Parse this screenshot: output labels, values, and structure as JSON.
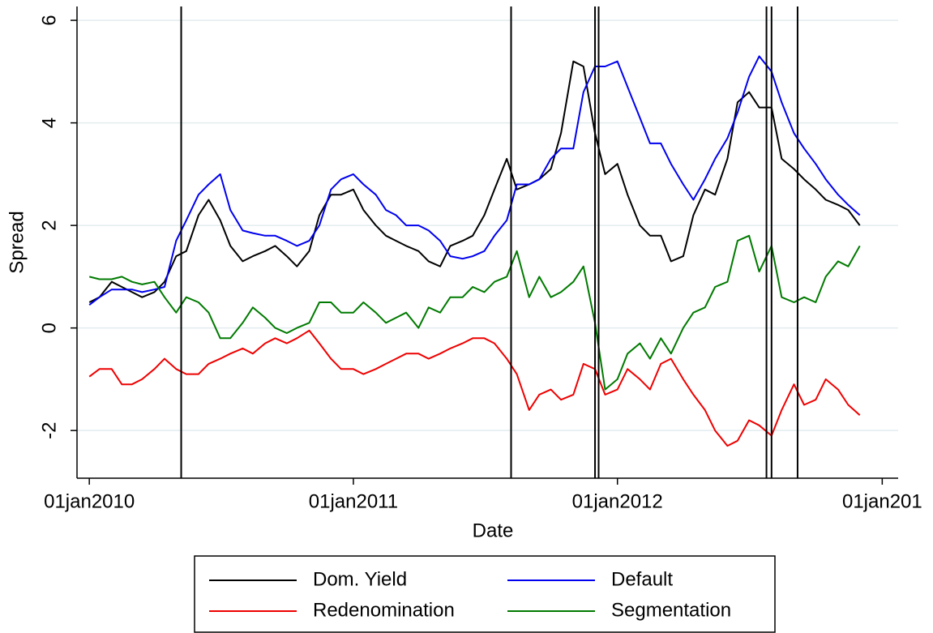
{
  "chart_data": {
    "type": "line",
    "x_label": "Date",
    "y_label": "Spread",
    "x": [
      "2010-01-01",
      "2010-01-15",
      "2010-02-01",
      "2010-02-15",
      "2010-03-01",
      "2010-03-15",
      "2010-04-01",
      "2010-04-15",
      "2010-05-01",
      "2010-05-15",
      "2010-06-01",
      "2010-06-15",
      "2010-07-01",
      "2010-07-15",
      "2010-08-01",
      "2010-08-15",
      "2010-09-01",
      "2010-09-15",
      "2010-10-01",
      "2010-10-15",
      "2010-11-01",
      "2010-11-15",
      "2010-12-01",
      "2010-12-15",
      "2011-01-01",
      "2011-01-15",
      "2011-02-01",
      "2011-02-15",
      "2011-03-01",
      "2011-03-15",
      "2011-04-01",
      "2011-04-15",
      "2011-05-01",
      "2011-05-15",
      "2011-06-01",
      "2011-06-15",
      "2011-07-01",
      "2011-07-15",
      "2011-08-01",
      "2011-08-15",
      "2011-09-01",
      "2011-09-15",
      "2011-10-01",
      "2011-10-15",
      "2011-11-01",
      "2011-11-15",
      "2011-12-01",
      "2011-12-15",
      "2012-01-01",
      "2012-01-15",
      "2012-02-01",
      "2012-02-15",
      "2012-03-01",
      "2012-03-15",
      "2012-04-01",
      "2012-04-15",
      "2012-05-01",
      "2012-05-15",
      "2012-06-01",
      "2012-06-15",
      "2012-07-01",
      "2012-07-15",
      "2012-08-01",
      "2012-08-15",
      "2012-09-01",
      "2012-09-15",
      "2012-10-01",
      "2012-10-15",
      "2012-11-01",
      "2012-11-15",
      "2012-12-01"
    ],
    "series": [
      {
        "name": "Dom. Yield",
        "color": "#000000",
        "values": [
          0.5,
          0.6,
          0.9,
          0.8,
          0.7,
          0.6,
          0.7,
          0.9,
          1.4,
          1.5,
          2.2,
          2.5,
          2.1,
          1.6,
          1.3,
          1.4,
          1.5,
          1.6,
          1.4,
          1.2,
          1.5,
          2.2,
          2.6,
          2.6,
          2.7,
          2.3,
          2.0,
          1.8,
          1.7,
          1.6,
          1.5,
          1.3,
          1.2,
          1.6,
          1.7,
          1.8,
          2.2,
          2.7,
          3.3,
          2.7,
          2.8,
          2.9,
          3.1,
          3.8,
          5.2,
          5.1,
          3.8,
          3.0,
          3.2,
          2.6,
          2.0,
          1.8,
          1.8,
          1.3,
          1.4,
          2.2,
          2.7,
          2.6,
          3.3,
          4.4,
          4.6,
          4.3,
          4.3,
          3.3,
          3.1,
          2.9,
          2.7,
          2.5,
          2.4,
          2.3,
          2.0
        ]
      },
      {
        "name": "Default",
        "color": "#0000ee",
        "values": [
          0.45,
          0.6,
          0.75,
          0.75,
          0.75,
          0.7,
          0.75,
          0.8,
          1.7,
          2.1,
          2.6,
          2.8,
          3.0,
          2.3,
          1.9,
          1.85,
          1.8,
          1.8,
          1.7,
          1.6,
          1.7,
          2.0,
          2.7,
          2.9,
          3.0,
          2.8,
          2.6,
          2.3,
          2.2,
          2.0,
          2.0,
          1.9,
          1.7,
          1.4,
          1.35,
          1.4,
          1.5,
          1.8,
          2.1,
          2.8,
          2.8,
          2.9,
          3.3,
          3.5,
          3.5,
          4.6,
          5.1,
          5.1,
          5.2,
          4.7,
          4.1,
          3.6,
          3.6,
          3.2,
          2.8,
          2.5,
          2.9,
          3.3,
          3.7,
          4.2,
          4.9,
          5.3,
          5.0,
          4.4,
          3.8,
          3.5,
          3.2,
          2.9,
          2.6,
          2.4,
          2.2
        ]
      },
      {
        "name": "Redenomination",
        "color": "#ee0000",
        "values": [
          -0.95,
          -0.8,
          -0.8,
          -1.1,
          -1.1,
          -1.0,
          -0.8,
          -0.6,
          -0.8,
          -0.9,
          -0.9,
          -0.7,
          -0.6,
          -0.5,
          -0.4,
          -0.5,
          -0.3,
          -0.2,
          -0.3,
          -0.2,
          -0.05,
          -0.3,
          -0.6,
          -0.8,
          -0.8,
          -0.9,
          -0.8,
          -0.7,
          -0.6,
          -0.5,
          -0.5,
          -0.6,
          -0.5,
          -0.4,
          -0.3,
          -0.2,
          -0.2,
          -0.3,
          -0.6,
          -0.9,
          -1.6,
          -1.3,
          -1.2,
          -1.4,
          -1.3,
          -0.7,
          -0.8,
          -1.3,
          -1.2,
          -0.8,
          -1.0,
          -1.2,
          -0.7,
          -0.6,
          -1.0,
          -1.3,
          -1.6,
          -2.0,
          -2.3,
          -2.2,
          -1.8,
          -1.9,
          -2.1,
          -1.6,
          -1.1,
          -1.5,
          -1.4,
          -1.0,
          -1.2,
          -1.5,
          -1.7
        ]
      },
      {
        "name": "Segmentation",
        "color": "#007a00",
        "values": [
          1.0,
          0.95,
          0.95,
          1.0,
          0.9,
          0.85,
          0.9,
          0.6,
          0.3,
          0.6,
          0.5,
          0.3,
          -0.2,
          -0.2,
          0.1,
          0.4,
          0.2,
          0.0,
          -0.1,
          0.0,
          0.1,
          0.5,
          0.5,
          0.3,
          0.3,
          0.5,
          0.3,
          0.1,
          0.2,
          0.3,
          0.0,
          0.4,
          0.3,
          0.6,
          0.6,
          0.8,
          0.7,
          0.9,
          1.0,
          1.5,
          0.6,
          1.0,
          0.6,
          0.7,
          0.9,
          1.2,
          0.1,
          -1.2,
          -1.0,
          -0.5,
          -0.3,
          -0.6,
          -0.2,
          -0.5,
          0.0,
          0.3,
          0.4,
          0.8,
          0.9,
          1.7,
          1.8,
          1.1,
          1.6,
          0.6,
          0.5,
          0.6,
          0.5,
          1.0,
          1.3,
          1.2,
          1.6
        ]
      }
    ],
    "vlines": [
      "2010-05-08",
      "2011-08-07",
      "2011-12-01",
      "2011-12-06",
      "2012-07-25",
      "2012-08-01",
      "2012-09-06"
    ],
    "xlim": [
      "2009-12-15",
      "2013-01-23"
    ],
    "xticks": [
      {
        "value": "2010-01-01",
        "label": "01jan2010"
      },
      {
        "value": "2011-01-01",
        "label": "01jan2011"
      },
      {
        "value": "2012-01-01",
        "label": "01jan2012"
      },
      {
        "value": "2013-01-01",
        "label": "01jan201"
      }
    ],
    "ylim": [
      -2.93,
      6.27
    ],
    "yticks": [
      -2,
      0,
      2,
      4,
      6
    ],
    "grid": true,
    "legend": "bottom"
  }
}
